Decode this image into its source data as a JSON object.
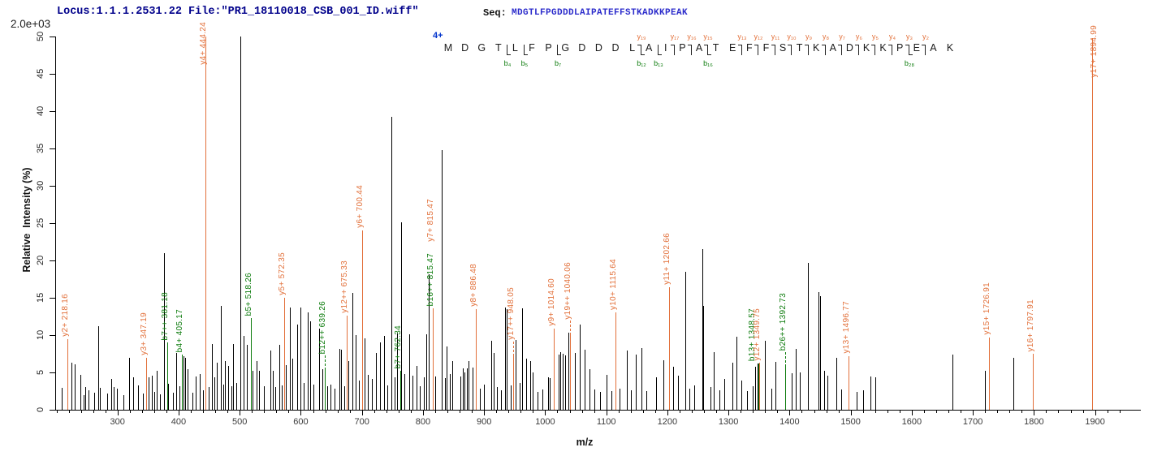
{
  "header": {
    "locus_file": "Locus:1.1.1.2531.22 File:\"PR1_18110018_CSB_001_ID.wiff\"",
    "seq_label": "Seq:",
    "sequence": "MDGTLFPGDDDLAIPATEFFSTKADKKPEAK"
  },
  "colors": {
    "orange": "#E2703A",
    "green": "#0A7A0A",
    "navy": "#00008B",
    "seq_blue": "#2B2BCB",
    "charge_blue": "#0033CC",
    "peak_black": "#000000"
  },
  "annotation": {
    "charge": "4+",
    "residues": [
      "M",
      "D",
      "G",
      "T",
      "L",
      "F",
      "P",
      "G",
      "D",
      "D",
      "D",
      "L",
      "A",
      "I",
      "P",
      "A",
      "T",
      "E",
      "F",
      "F",
      "S",
      "T",
      "K",
      "A",
      "D",
      "K",
      "K",
      "P",
      "E",
      "A",
      "K"
    ],
    "cuts": [
      {
        "after": 4,
        "b": "b₄"
      },
      {
        "after": 5,
        "b": "b₅"
      },
      {
        "after": 7,
        "b": "b₇"
      },
      {
        "after": 12,
        "y": "y₁₉",
        "b": "b₁₂"
      },
      {
        "after": 13,
        "b": "b₁₃"
      },
      {
        "after": 14,
        "y": "y₁₇"
      },
      {
        "after": 15,
        "y": "y₁₆"
      },
      {
        "after": 16,
        "y": "y₁₅",
        "b": "b₁₆"
      },
      {
        "after": 18,
        "y": "y₁₃"
      },
      {
        "after": 19,
        "y": "y₁₂"
      },
      {
        "after": 20,
        "y": "y₁₁"
      },
      {
        "after": 21,
        "y": "y₁₀"
      },
      {
        "after": 22,
        "y": "y₉"
      },
      {
        "after": 23,
        "y": "y₈"
      },
      {
        "after": 24,
        "y": "y₇"
      },
      {
        "after": 25,
        "y": "y₆"
      },
      {
        "after": 26,
        "y": "y₅"
      },
      {
        "after": 27,
        "y": "y₄"
      },
      {
        "after": 28,
        "y": "y₃",
        "b": "b₂₈"
      },
      {
        "after": 29,
        "y": "y₂"
      }
    ]
  },
  "chart_data": {
    "type": "bar",
    "subtype": "ms2-spectrum-stick-plot",
    "title": "",
    "xlabel": "m/z",
    "ylabel": "Relative  Intensity (%)",
    "y_scale_label": "2.0e+03",
    "x_range": [
      198,
      1955
    ],
    "y_range": [
      0,
      50
    ],
    "x_ticks": [
      300,
      400,
      500,
      600,
      700,
      800,
      900,
      1000,
      1100,
      1200,
      1300,
      1400,
      1500,
      1600,
      1700,
      1800,
      1900
    ],
    "x_minor_step": 20,
    "y_ticks": [
      0,
      5,
      10,
      15,
      20,
      25,
      30,
      35,
      40,
      45,
      50
    ],
    "grid": false,
    "peaks": [
      [
        198,
        4.2
      ],
      [
        208,
        2.9
      ],
      [
        225,
        6.3
      ],
      [
        230,
        6.1
      ],
      [
        239,
        4.7
      ],
      [
        244,
        2.0
      ],
      [
        247,
        3.0
      ],
      [
        252,
        2.6
      ],
      [
        262,
        2.3
      ],
      [
        268,
        11.2
      ],
      [
        271,
        2.9
      ],
      [
        283,
        2.2
      ],
      [
        290,
        4.1
      ],
      [
        294,
        3.0
      ],
      [
        299,
        2.8
      ],
      [
        310,
        2.0
      ],
      [
        319,
        7.0
      ],
      [
        325,
        4.3
      ],
      [
        333,
        3.3
      ],
      [
        342,
        2.2
      ],
      [
        351,
        4.4
      ],
      [
        356,
        4.6
      ],
      [
        360,
        2.4
      ],
      [
        364,
        5.2
      ],
      [
        370,
        2.1
      ],
      [
        376,
        21.0
      ],
      [
        383,
        3.5
      ],
      [
        391,
        2.3
      ],
      [
        396,
        7.6
      ],
      [
        402,
        3.1
      ],
      [
        408,
        7.2
      ],
      [
        411,
        7.0
      ],
      [
        415,
        5.4
      ],
      [
        422,
        2.3
      ],
      [
        428,
        4.5
      ],
      [
        435,
        4.8
      ],
      [
        440,
        2.6
      ],
      [
        449,
        3.0
      ],
      [
        455,
        8.8
      ],
      [
        459,
        4.4
      ],
      [
        462,
        6.3
      ],
      [
        469,
        13.9
      ],
      [
        473,
        3.4
      ],
      [
        476,
        6.5
      ],
      [
        481,
        5.9
      ],
      [
        486,
        3.2
      ],
      [
        489,
        8.8
      ],
      [
        494,
        3.6
      ],
      [
        500.5,
        50
      ],
      [
        506,
        9.9
      ],
      [
        511,
        8.7
      ],
      [
        521,
        5.2
      ],
      [
        528,
        6.5
      ],
      [
        532,
        5.2
      ],
      [
        540,
        3.1
      ],
      [
        550,
        7.9
      ],
      [
        554,
        5.2
      ],
      [
        558,
        3.0
      ],
      [
        565,
        8.7
      ],
      [
        569,
        3.3
      ],
      [
        576,
        6.0
      ],
      [
        582,
        13.7
      ],
      [
        586,
        6.8
      ],
      [
        594,
        11.4
      ],
      [
        599,
        13.7
      ],
      [
        605,
        3.6
      ],
      [
        611,
        13.0
      ],
      [
        615,
        11.9
      ],
      [
        621,
        3.4
      ],
      [
        630,
        10.9
      ],
      [
        635,
        5.4
      ],
      [
        643,
        3.2
      ],
      [
        648,
        3.4
      ],
      [
        655,
        2.8
      ],
      [
        663,
        8.1
      ],
      [
        666,
        8.0
      ],
      [
        671,
        3.1
      ],
      [
        678,
        6.5
      ],
      [
        684,
        15.7
      ],
      [
        690,
        10.0
      ],
      [
        695,
        3.9
      ],
      [
        704,
        9.6
      ],
      [
        710,
        4.7
      ],
      [
        716,
        4.1
      ],
      [
        723,
        7.6
      ],
      [
        730,
        9.0
      ],
      [
        736,
        9.9
      ],
      [
        742,
        3.3
      ],
      [
        748,
        39.2
      ],
      [
        753,
        4.4
      ],
      [
        757,
        10.2
      ],
      [
        764,
        25.1
      ],
      [
        770,
        4.8
      ],
      [
        777,
        10.1
      ],
      [
        783,
        4.6
      ],
      [
        790,
        5.9
      ],
      [
        795,
        3.2
      ],
      [
        801,
        4.4
      ],
      [
        805,
        10.1
      ],
      [
        810,
        18.1
      ],
      [
        820,
        4.5
      ],
      [
        830,
        34.8
      ],
      [
        836,
        4.2
      ],
      [
        839,
        8.5
      ],
      [
        844,
        4.8
      ],
      [
        848,
        6.5
      ],
      [
        861,
        4.5
      ],
      [
        865,
        5.5
      ],
      [
        868,
        5.0
      ],
      [
        872,
        5.5
      ],
      [
        875,
        6.5
      ],
      [
        881,
        5.6
      ],
      [
        893,
        2.8
      ],
      [
        900,
        3.4
      ],
      [
        912,
        9.2
      ],
      [
        916,
        7.6
      ],
      [
        921,
        3.0
      ],
      [
        928,
        2.6
      ],
      [
        934,
        13.7
      ],
      [
        937,
        13.5
      ],
      [
        944,
        3.3
      ],
      [
        952,
        9.3
      ],
      [
        958,
        3.6
      ],
      [
        962,
        13.6
      ],
      [
        969,
        6.8
      ],
      [
        975,
        6.5
      ],
      [
        979,
        5.0
      ],
      [
        988,
        2.4
      ],
      [
        995,
        2.7
      ],
      [
        1005,
        4.3
      ],
      [
        1008,
        4.2
      ],
      [
        1022,
        7.4
      ],
      [
        1025,
        7.7
      ],
      [
        1028,
        7.5
      ],
      [
        1032,
        7.3
      ],
      [
        1038,
        10.3
      ],
      [
        1048,
        7.6
      ],
      [
        1057,
        11.4
      ],
      [
        1064,
        8.0
      ],
      [
        1073,
        5.4
      ],
      [
        1080,
        2.7
      ],
      [
        1090,
        2.4
      ],
      [
        1100,
        4.7
      ],
      [
        1108,
        2.5
      ],
      [
        1122,
        2.8
      ],
      [
        1133,
        7.9
      ],
      [
        1140,
        2.6
      ],
      [
        1148,
        7.4
      ],
      [
        1157,
        8.3
      ],
      [
        1166,
        2.5
      ],
      [
        1181,
        4.3
      ],
      [
        1193,
        6.6
      ],
      [
        1210,
        5.8
      ],
      [
        1218,
        4.6
      ],
      [
        1229,
        18.5
      ],
      [
        1236,
        2.8
      ],
      [
        1244,
        3.3
      ],
      [
        1257,
        21.5
      ],
      [
        1259,
        13.9
      ],
      [
        1270,
        3.0
      ],
      [
        1276,
        7.7
      ],
      [
        1285,
        2.6
      ],
      [
        1293,
        4.1
      ],
      [
        1306,
        6.3
      ],
      [
        1313,
        9.8
      ],
      [
        1321,
        3.9
      ],
      [
        1330,
        2.5
      ],
      [
        1340,
        3.2
      ],
      [
        1344,
        5.8
      ],
      [
        1347,
        6.2
      ],
      [
        1360,
        9.2
      ],
      [
        1370,
        2.8
      ],
      [
        1377,
        6.4
      ],
      [
        1404,
        4.9
      ],
      [
        1410,
        8.1
      ],
      [
        1417,
        5.0
      ],
      [
        1430,
        19.7
      ],
      [
        1447,
        15.8
      ],
      [
        1450,
        15.2
      ],
      [
        1457,
        5.2
      ],
      [
        1462,
        4.6
      ],
      [
        1476,
        7.0
      ],
      [
        1484,
        2.7
      ],
      [
        1497,
        7.2
      ],
      [
        1510,
        2.4
      ],
      [
        1520,
        2.6
      ],
      [
        1533,
        4.5
      ],
      [
        1540,
        4.4
      ],
      [
        1667,
        7.4
      ],
      [
        1720,
        5.2
      ],
      [
        1766,
        7.0
      ]
    ],
    "labeled_ions": [
      {
        "text": "y2+ 218.16",
        "mz": 218.16,
        "h": 9.5,
        "color": "orange"
      },
      {
        "text": "y3+ 347.19",
        "mz": 347.19,
        "h": 7.0,
        "color": "orange"
      },
      {
        "text": "b7++ 381.18",
        "mz": 381.18,
        "h": 9.0,
        "color": "green"
      },
      {
        "text": "b4+ 405.17",
        "mz": 405.17,
        "h": 7.4,
        "color": "green"
      },
      {
        "text": "y4+ 444.24",
        "mz": 444.24,
        "h": 50,
        "color": "orange",
        "bottom_y": 80
      },
      {
        "text": "b5+ 518.26",
        "mz": 518.26,
        "h": 12.3,
        "color": "green"
      },
      {
        "text": "y5+ 572.35",
        "mz": 572.35,
        "h": 15.0,
        "color": "orange"
      },
      {
        "text": "b12++ 639.26",
        "mz": 639.26,
        "h": 5.6,
        "color": "green",
        "dashed": true
      },
      {
        "text": "y12++ 675.33",
        "mz": 675.33,
        "h": 12.6,
        "color": "orange"
      },
      {
        "text": "y6+ 700.44",
        "mz": 700.44,
        "h": 24.0,
        "color": "orange"
      },
      {
        "text": "b7+ 762.34",
        "mz": 762.34,
        "h": 5.2,
        "color": "green"
      },
      {
        "text": "b16++ 815.47",
        "mz": 815.47,
        "h": 13.6,
        "color": "green"
      },
      {
        "text": "y7+ 815.47",
        "mz": 815.47,
        "h": 13.6,
        "color": "orange",
        "offset": 82
      },
      {
        "text": "y8+ 886.48",
        "mz": 886.48,
        "h": 13.5,
        "color": "orange"
      },
      {
        "text": "y17++ 948.05",
        "mz": 948.05,
        "h": 7.5,
        "color": "orange",
        "dashed": true
      },
      {
        "text": "y9+ 1014.60",
        "mz": 1014.6,
        "h": 10.9,
        "color": "orange"
      },
      {
        "text": "y19++ 1040.06",
        "mz": 1040.06,
        "h": 10.3,
        "color": "orange",
        "dashed": true
      },
      {
        "text": "y10+ 1115.64",
        "mz": 1115.64,
        "h": 13.0,
        "color": "orange"
      },
      {
        "text": "y11+ 1202.66",
        "mz": 1202.66,
        "h": 16.4,
        "color": "orange"
      },
      {
        "text": "b13+ 1348.57",
        "mz": 1348.57,
        "h": 6.2,
        "color": "green",
        "dx": -5
      },
      {
        "text": "y12+ 1349.75",
        "mz": 1349.75,
        "h": 6.3,
        "color": "orange"
      },
      {
        "text": "b26++ 1392.73",
        "mz": 1392.73,
        "h": 6.1,
        "color": "green",
        "dashed": true
      },
      {
        "text": "y13+ 1496.77",
        "mz": 1496.77,
        "h": 7.2,
        "color": "orange"
      },
      {
        "text": "y15+ 1726.91",
        "mz": 1726.91,
        "h": 9.7,
        "color": "orange"
      },
      {
        "text": "y16+ 1797.91",
        "mz": 1797.91,
        "h": 7.5,
        "color": "orange"
      },
      {
        "text": "y17+ 1894.99",
        "mz": 1894.99,
        "h": 49.8,
        "color": "orange",
        "dx": 5,
        "bottom_y": 95
      }
    ]
  }
}
